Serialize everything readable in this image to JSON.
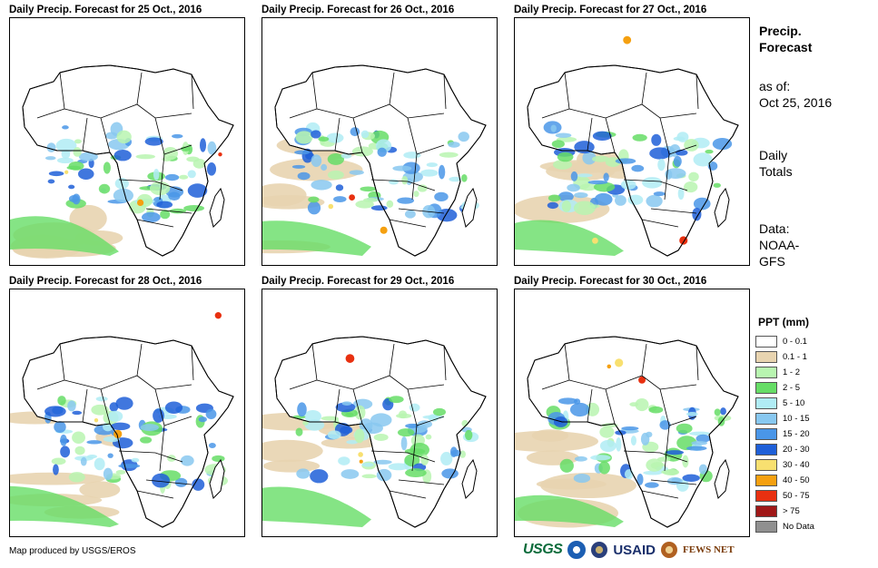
{
  "panels": [
    {
      "title": "Daily Precip. Forecast for 25 Oct., 2016"
    },
    {
      "title": "Daily Precip. Forecast for 26 Oct., 2016"
    },
    {
      "title": "Daily Precip. Forecast for 27 Oct., 2016"
    },
    {
      "title": "Daily Precip. Forecast for 28 Oct., 2016"
    },
    {
      "title": "Daily Precip. Forecast for 29 Oct., 2016"
    },
    {
      "title": "Daily Precip. Forecast for 30 Oct., 2016"
    }
  ],
  "sidebar": {
    "title_line1": "Precip.",
    "title_line2": "Forecast",
    "asof_label": "as of:",
    "asof_date": "Oct 25, 2016",
    "totals_line1": "Daily",
    "totals_line2": "Totals",
    "data_line1": "Data:",
    "data_line2": "NOAA-",
    "data_line3": "GFS"
  },
  "legend": {
    "title": "PPT (mm)",
    "items": [
      {
        "label": "0 - 0.1",
        "color": "#ffffff"
      },
      {
        "label": "0.1 - 1",
        "color": "#e8d4b0"
      },
      {
        "label": "1 - 2",
        "color": "#b8f5b0"
      },
      {
        "label": "2 - 5",
        "color": "#66dd66"
      },
      {
        "label": "5 - 10",
        "color": "#b0ecf5"
      },
      {
        "label": "10 - 15",
        "color": "#88c8f0"
      },
      {
        "label": "15 - 20",
        "color": "#4a96e8"
      },
      {
        "label": "20 - 30",
        "color": "#1e5fd8"
      },
      {
        "label": "30 - 40",
        "color": "#f8e070"
      },
      {
        "label": "40 - 50",
        "color": "#f5a010"
      },
      {
        "label": "50 - 75",
        "color": "#e83010"
      },
      {
        "label": "> 75",
        "color": "#a01818"
      },
      {
        "label": "No Data",
        "color": "#909090"
      }
    ]
  },
  "footer": {
    "credit": "Map produced by USGS/EROS",
    "logo_usgs": "USGS",
    "logo_usaid": "USAID",
    "logo_fews": "FEWS NET"
  }
}
